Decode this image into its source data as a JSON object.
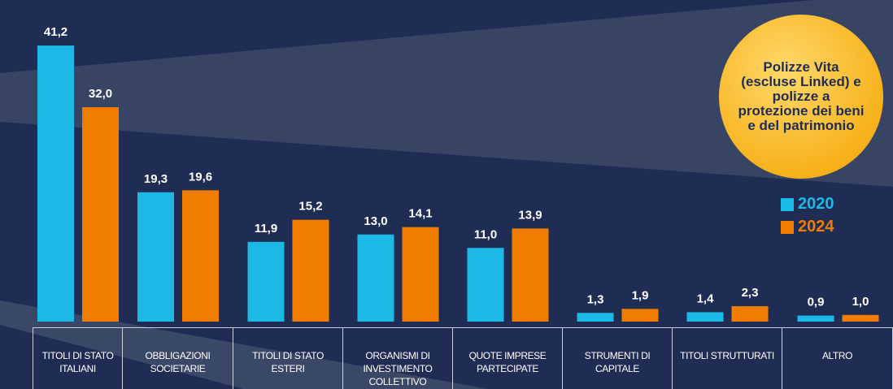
{
  "chart_data": {
    "type": "bar",
    "annotation": "Polizze Vita (escluse Linked) e polizze a protezione dei beni e del patrimonio",
    "categories": [
      "TITOLI DI STATO ITALIANI",
      "OBBLIGAZIONI SOCIETARIE",
      "TITOLI DI STATO ESTERI",
      "ORGANISMI DI INVESTIMENTO COLLETTIVO",
      "QUOTE IMPRESE PARTECIPATE",
      "STRUMENTI DI CAPITALE",
      "TITOLI STRUTTURATI",
      "ALTRO"
    ],
    "series": [
      {
        "name": "2020",
        "color": "#1cb8e6",
        "values": [
          41.2,
          19.3,
          11.9,
          13.0,
          11.0,
          1.3,
          1.4,
          0.9
        ],
        "value_labels": [
          "41,2",
          "19,3",
          "11,9",
          "13,0",
          "11,0",
          "1,3",
          "1,4",
          "0,9"
        ]
      },
      {
        "name": "2024",
        "color": "#f07d00",
        "values": [
          32.0,
          19.6,
          15.2,
          14.1,
          13.9,
          1.9,
          2.3,
          1.0
        ],
        "value_labels": [
          "32,0",
          "19,6",
          "15,2",
          "14,1",
          "13,9",
          "1,9",
          "2,3",
          "1,0"
        ]
      }
    ],
    "legend": "right"
  }
}
